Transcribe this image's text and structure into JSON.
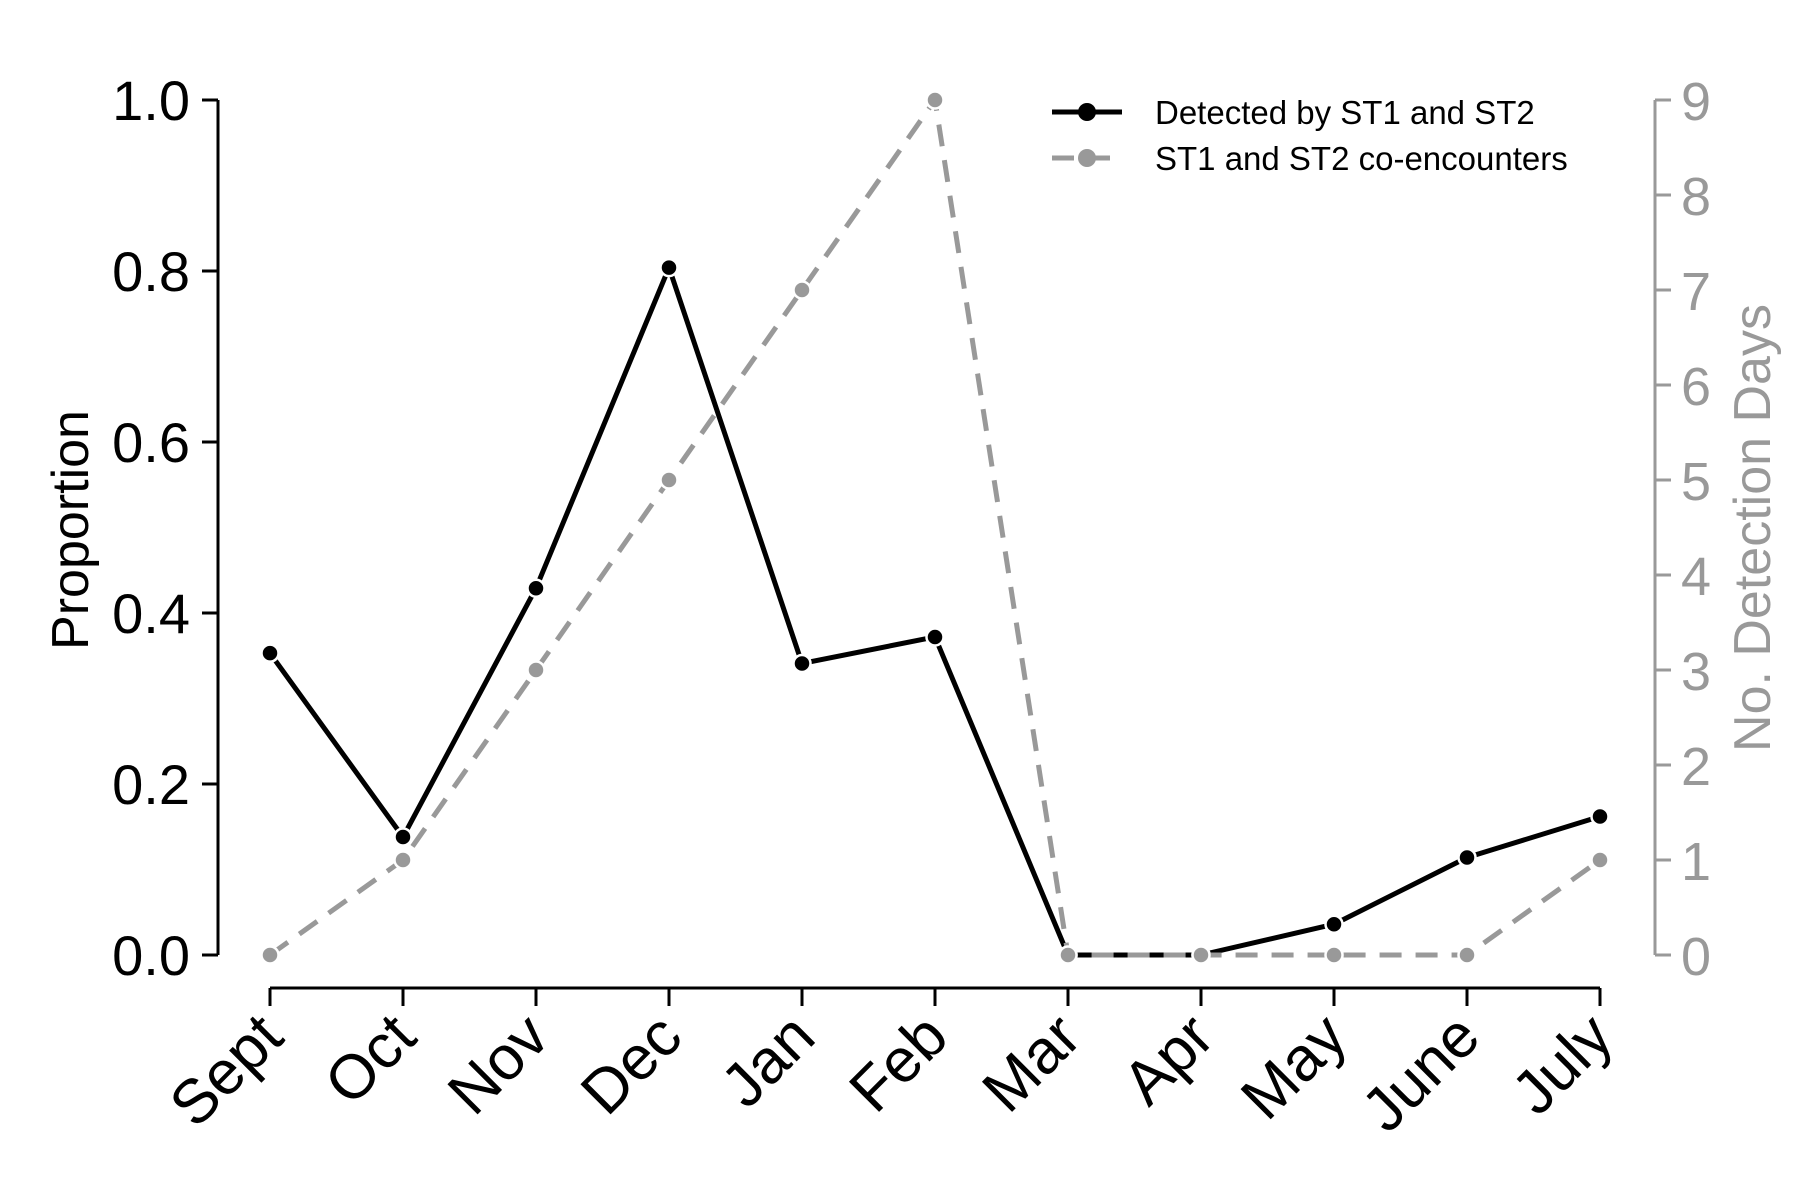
{
  "chart_data": {
    "type": "line",
    "categories": [
      "Sept",
      "Oct",
      "Nov",
      "Dec",
      "Jan",
      "Feb",
      "Mar",
      "Apr",
      "May",
      "June",
      "July"
    ],
    "y_left": {
      "label": "Proportion",
      "lim": [
        0,
        1.0
      ],
      "ticks": [
        "0.0",
        "0.2",
        "0.4",
        "0.6",
        "0.8",
        "1.0"
      ],
      "color": "#000000"
    },
    "y_right": {
      "label": "No. Detection Days",
      "lim": [
        0,
        9
      ],
      "ticks": [
        "0",
        "1",
        "2",
        "3",
        "4",
        "5",
        "6",
        "7",
        "8",
        "9"
      ],
      "color": "#999999"
    },
    "grid": false,
    "legend_position": "top-right",
    "series": [
      {
        "name": "Detected by ST1 and ST2",
        "axis": "left",
        "color": "#000000",
        "dashed": false,
        "values": [
          0.353,
          0.138,
          0.429,
          0.804,
          0.341,
          0.372,
          0.0,
          0.0,
          0.036,
          0.114,
          0.162
        ]
      },
      {
        "name": "ST1 and ST2 co-encounters",
        "axis": "right",
        "color": "#999999",
        "dashed": true,
        "values": [
          0,
          1,
          3,
          5,
          7,
          9,
          0,
          0,
          0,
          0,
          1
        ]
      }
    ]
  }
}
